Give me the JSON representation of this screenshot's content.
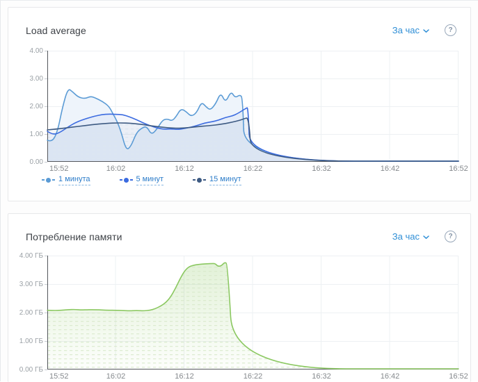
{
  "colors": {
    "link_blue": "#2e8ed6",
    "axis": "#54575c",
    "grid": "#edf0f3",
    "panel_border": "#e7e8ea",
    "series_1min": "#5b9bd5",
    "series_5min": "#3b6be0",
    "series_15min": "#3d5a82",
    "series_memory": "#8bc861"
  },
  "panels": [
    {
      "title": "Load average",
      "range_selector": {
        "label": "За час",
        "icon": "chevron-down-icon"
      },
      "help": {
        "icon": "help-icon",
        "glyph": "?"
      },
      "chart_index": 0
    },
    {
      "title": "Потребление памяти",
      "range_selector": {
        "label": "За час",
        "icon": "chevron-down-icon"
      },
      "help": {
        "icon": "help-icon",
        "glyph": "?"
      },
      "chart_index": 1
    }
  ],
  "chart_data": [
    {
      "type": "line",
      "title": "Load average",
      "xlabel": "",
      "ylabel": "",
      "xlim_minutes": [
        0,
        60
      ],
      "ylim": [
        0,
        4
      ],
      "x_tick_minutes": [
        0,
        10,
        20,
        30,
        40,
        50,
        60
      ],
      "x_tick_labels": [
        "15:52",
        "16:02",
        "16:12",
        "16:22",
        "16:32",
        "16:42",
        "16:52"
      ],
      "y_ticks": [
        0,
        1,
        2,
        3,
        4
      ],
      "y_tick_labels": [
        "0.00",
        "1.00",
        "2.00",
        "3.00",
        "4.00"
      ],
      "grid": true,
      "legend_position": "bottom",
      "series": [
        {
          "name": "1 минута",
          "color": "#5b9bd5",
          "area_style": "solid",
          "area_color": "#eef4fb",
          "points": [
            [
              0,
              0.78
            ],
            [
              0.7,
              0.7
            ],
            [
              1.5,
              1.1
            ],
            [
              2.2,
              1.95
            ],
            [
              3,
              2.65
            ],
            [
              3.7,
              2.52
            ],
            [
              4.5,
              2.33
            ],
            [
              5.5,
              2.27
            ],
            [
              6.3,
              2.36
            ],
            [
              7,
              2.3
            ],
            [
              8,
              2.18
            ],
            [
              9,
              2.0
            ],
            [
              9.6,
              1.72
            ],
            [
              10.2,
              1.45
            ],
            [
              10.8,
              1.05
            ],
            [
              11.5,
              0.42
            ],
            [
              12.2,
              0.55
            ],
            [
              13,
              1.05
            ],
            [
              13.8,
              1.22
            ],
            [
              14.5,
              1.28
            ],
            [
              15.2,
              0.97
            ],
            [
              16,
              1.18
            ],
            [
              16.8,
              1.5
            ],
            [
              17.5,
              1.55
            ],
            [
              18.2,
              1.47
            ],
            [
              18.8,
              1.63
            ],
            [
              19.5,
              1.92
            ],
            [
              20.3,
              1.8
            ],
            [
              21,
              1.63
            ],
            [
              21.8,
              1.77
            ],
            [
              22.5,
              2.16
            ],
            [
              23.2,
              1.97
            ],
            [
              23.8,
              1.86
            ],
            [
              24.6,
              2.1
            ],
            [
              25.3,
              2.5
            ],
            [
              26,
              2.12
            ],
            [
              26.8,
              2.55
            ],
            [
              27.4,
              2.3
            ],
            [
              28.1,
              2.42
            ],
            [
              28.5,
              2.3
            ],
            [
              28.8,
              0
            ],
            [
              60,
              0
            ]
          ]
        },
        {
          "name": "5 минут",
          "color": "#3b6be0",
          "area_style": "tint",
          "points": [
            [
              0,
              1.1
            ],
            [
              0.8,
              0.97
            ],
            [
              1.8,
              1.05
            ],
            [
              3,
              1.25
            ],
            [
              4,
              1.4
            ],
            [
              5,
              1.5
            ],
            [
              6,
              1.58
            ],
            [
              7,
              1.65
            ],
            [
              8,
              1.7
            ],
            [
              9,
              1.72
            ],
            [
              10,
              1.71
            ],
            [
              11,
              1.7
            ],
            [
              12,
              1.62
            ],
            [
              13,
              1.52
            ],
            [
              14,
              1.4
            ],
            [
              15,
              1.3
            ],
            [
              16,
              1.22
            ],
            [
              17,
              1.17
            ],
            [
              18,
              1.19
            ],
            [
              19,
              1.16
            ],
            [
              20,
              1.2
            ],
            [
              21,
              1.25
            ],
            [
              22,
              1.32
            ],
            [
              23,
              1.4
            ],
            [
              24,
              1.44
            ],
            [
              25,
              1.5
            ],
            [
              26,
              1.6
            ],
            [
              27,
              1.65
            ],
            [
              27.7,
              1.73
            ],
            [
              28.3,
              1.82
            ],
            [
              29,
              1.93
            ],
            [
              29.3,
              1.96
            ],
            [
              29.6,
              0
            ],
            [
              60,
              0
            ]
          ]
        },
        {
          "name": "15 минут",
          "color": "#3d5a82",
          "area_style": "hatch",
          "points": [
            [
              0,
              1.15
            ],
            [
              1,
              1.17
            ],
            [
              2,
              1.2
            ],
            [
              3,
              1.23
            ],
            [
              4,
              1.26
            ],
            [
              5,
              1.29
            ],
            [
              6,
              1.32
            ],
            [
              7,
              1.35
            ],
            [
              8,
              1.37
            ],
            [
              9,
              1.39
            ],
            [
              10,
              1.4
            ],
            [
              11,
              1.4
            ],
            [
              12,
              1.39
            ],
            [
              13,
              1.37
            ],
            [
              14,
              1.34
            ],
            [
              15,
              1.3
            ],
            [
              16,
              1.27
            ],
            [
              17,
              1.24
            ],
            [
              18,
              1.22
            ],
            [
              19,
              1.21
            ],
            [
              20,
              1.22
            ],
            [
              21,
              1.24
            ],
            [
              22,
              1.27
            ],
            [
              23,
              1.29
            ],
            [
              24,
              1.31
            ],
            [
              25,
              1.34
            ],
            [
              26,
              1.38
            ],
            [
              27,
              1.43
            ],
            [
              28,
              1.49
            ],
            [
              28.7,
              1.55
            ],
            [
              29.4,
              1.6
            ],
            [
              29.8,
              0
            ],
            [
              60,
              0
            ]
          ]
        }
      ]
    },
    {
      "type": "area",
      "title": "Потребление памяти",
      "xlabel": "",
      "ylabel": "",
      "unit": "ГБ",
      "xlim_minutes": [
        0,
        60
      ],
      "ylim": [
        0,
        4
      ],
      "x_tick_minutes": [
        0,
        10,
        20,
        30,
        40,
        50,
        60
      ],
      "x_tick_labels": [
        "15:52",
        "16:02",
        "16:12",
        "16:22",
        "16:32",
        "16:42",
        "16:52"
      ],
      "y_ticks": [
        0,
        1,
        2,
        3,
        4
      ],
      "y_tick_labels": [
        "0.00 ГБ",
        "1.00 ГБ",
        "2.00 ГБ",
        "3.00 ГБ",
        "4.00 ГБ"
      ],
      "grid": true,
      "legend_position": "none",
      "series": [
        {
          "name": "Потребление памяти",
          "color": "#8bc861",
          "area_style": "gradient-hatch",
          "points": [
            [
              0,
              2.08
            ],
            [
              1,
              2.07
            ],
            [
              2,
              2.08
            ],
            [
              3,
              2.1
            ],
            [
              4,
              2.11
            ],
            [
              5,
              2.09
            ],
            [
              6,
              2.1
            ],
            [
              7,
              2.1
            ],
            [
              8,
              2.09
            ],
            [
              9,
              2.08
            ],
            [
              10,
              2.08
            ],
            [
              11,
              2.07
            ],
            [
              12,
              2.06
            ],
            [
              13,
              2.07
            ],
            [
              14,
              2.06
            ],
            [
              15,
              2.08
            ],
            [
              15.7,
              2.13
            ],
            [
              16.5,
              2.22
            ],
            [
              17.3,
              2.35
            ],
            [
              18,
              2.55
            ],
            [
              18.7,
              2.85
            ],
            [
              19.4,
              3.2
            ],
            [
              20,
              3.45
            ],
            [
              20.6,
              3.6
            ],
            [
              21.3,
              3.66
            ],
            [
              22,
              3.69
            ],
            [
              23,
              3.71
            ],
            [
              24,
              3.72
            ],
            [
              24.5,
              3.72
            ],
            [
              24.9,
              3.62
            ],
            [
              25.4,
              3.64
            ],
            [
              25.9,
              3.77
            ],
            [
              26.3,
              3.7
            ],
            [
              27.2,
              0
            ],
            [
              60,
              0
            ]
          ]
        }
      ]
    }
  ]
}
